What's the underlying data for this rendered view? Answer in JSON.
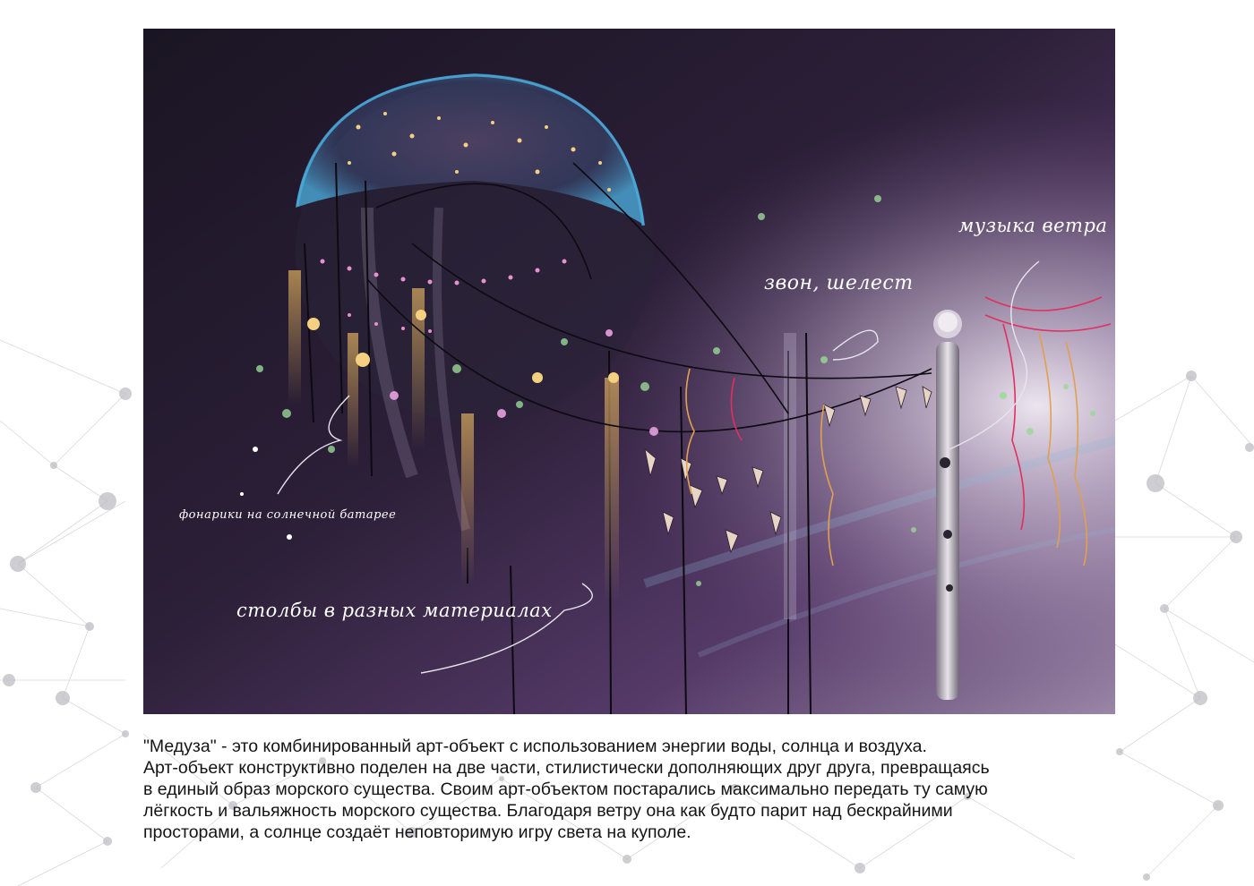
{
  "annotations": {
    "wind_music": "музыка ветра",
    "ringing_rustle": "звон, шелест",
    "solar_lanterns": "фонарики на солнечной батарее",
    "poles_materials": "столбы в разных материалах"
  },
  "description": "\"Медуза\" - это комбинированный арт-объект с использованием энергии воды, солнца и воздуха.\nАрт-объект конструктивно поделен на две части, стилистически дополняющих друг друга, превращаясь\nв единый образ морского существа. Своим арт-объектом постарались максимально передать ту самую\nлёгкость и вальяжность морского существа. Благодаря ветру она как будто парит над бескрайними\nпросторами, а солнце создаёт неповторимую игру света на куполе.",
  "colors": {
    "page_background": "#ffffff",
    "illustration_dark": "#1c1626",
    "illustration_purple": "#6b4a7e",
    "jellyfish_glow": "#4aa8d8",
    "annotation_text": "#ffffff",
    "body_text": "#151515"
  }
}
